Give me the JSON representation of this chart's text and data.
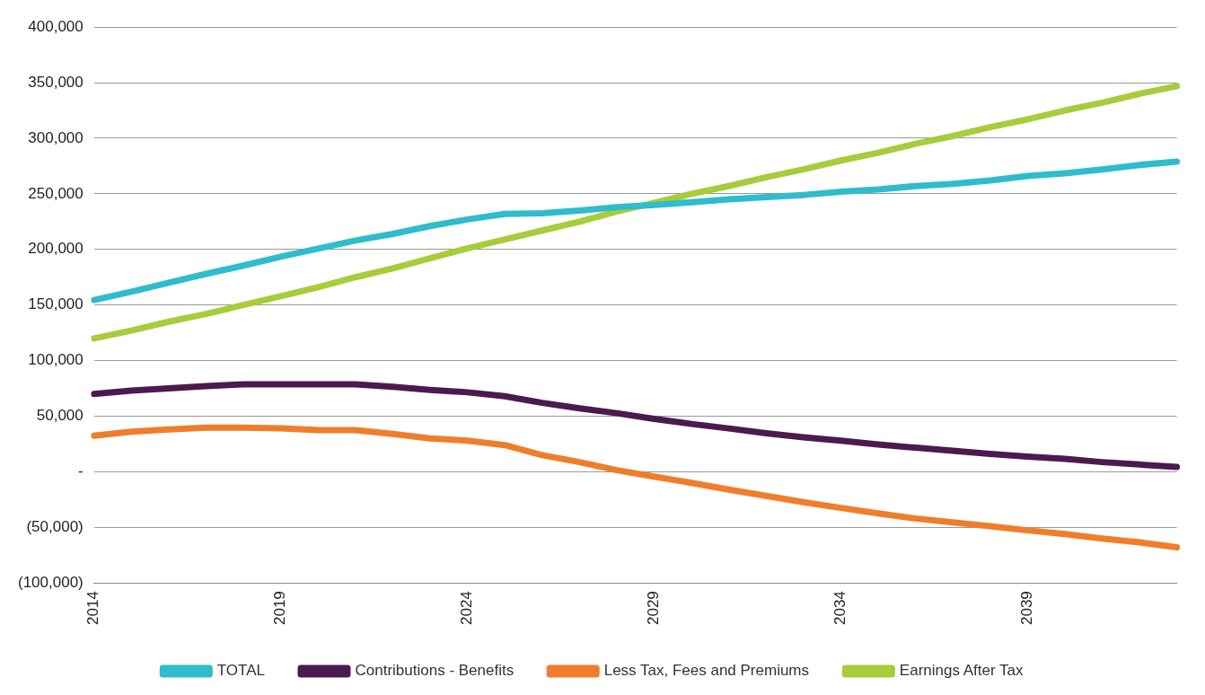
{
  "chart_data": {
    "type": "line",
    "categories": [
      "2014",
      null,
      null,
      null,
      null,
      "2019",
      null,
      null,
      null,
      null,
      "2024",
      null,
      null,
      null,
      null,
      "2029",
      null,
      null,
      null,
      null,
      "2034",
      null,
      null,
      null,
      null,
      "2039",
      null,
      null,
      null,
      null
    ],
    "series": [
      {
        "name": "TOTAL",
        "color": "#2fbccc",
        "values": [
          154500,
          162000,
          170000,
          178000,
          185500,
          193500,
          200700,
          208000,
          214000,
          221000,
          227000,
          232000,
          232500,
          235000,
          238000,
          240000,
          242500,
          245000,
          247000,
          249000,
          252000,
          254000,
          257000,
          259000,
          262000,
          266000,
          268500,
          272000,
          276000,
          279000
        ]
      },
      {
        "name": "Contributions - Benefits",
        "color": "#4b1a4f",
        "values": [
          70000,
          73000,
          75000,
          77000,
          78700,
          78700,
          78700,
          78700,
          76500,
          73600,
          71500,
          68000,
          62000,
          57000,
          52700,
          47600,
          43000,
          39000,
          34700,
          31000,
          28000,
          24500,
          21700,
          18800,
          16000,
          13700,
          11600,
          8700,
          6500,
          4300
        ]
      },
      {
        "name": "Less Tax, Fees and Premiums",
        "color": "#f07d2b",
        "values": [
          32500,
          36000,
          38000,
          39700,
          39700,
          39000,
          37500,
          37500,
          34000,
          30000,
          28000,
          24000,
          15000,
          8700,
          1400,
          -4300,
          -10000,
          -16000,
          -21700,
          -27400,
          -32500,
          -37500,
          -42000,
          -45500,
          -49000,
          -52700,
          -56000,
          -60000,
          -63500,
          -68000
        ]
      },
      {
        "name": "Earnings After Tax",
        "color": "#a8cc3a",
        "values": [
          120000,
          127000,
          135000,
          142000,
          150000,
          158000,
          166000,
          175000,
          183000,
          192000,
          201000,
          209000,
          217000,
          225000,
          234000,
          242000,
          250000,
          257000,
          265000,
          272000,
          280000,
          287000,
          295000,
          302000,
          310000,
          317000,
          325000,
          332000,
          340000,
          347000
        ]
      }
    ],
    "ylim": [
      -100000,
      400000
    ],
    "yticks": [
      {
        "value": -100000,
        "label": "(100,000)"
      },
      {
        "value": -50000,
        "label": "(50,000)"
      },
      {
        "value": 0,
        "label": "-"
      },
      {
        "value": 50000,
        "label": "50,000"
      },
      {
        "value": 100000,
        "label": "100,000"
      },
      {
        "value": 150000,
        "label": "150,000"
      },
      {
        "value": 200000,
        "label": "200,000"
      },
      {
        "value": 250000,
        "label": "250,000"
      },
      {
        "value": 300000,
        "label": "300,000"
      },
      {
        "value": 350000,
        "label": "350,000"
      },
      {
        "value": 400000,
        "label": "400,000"
      }
    ],
    "grid": "y",
    "legend": "bottom",
    "marker": "none",
    "line_style": "solid"
  }
}
